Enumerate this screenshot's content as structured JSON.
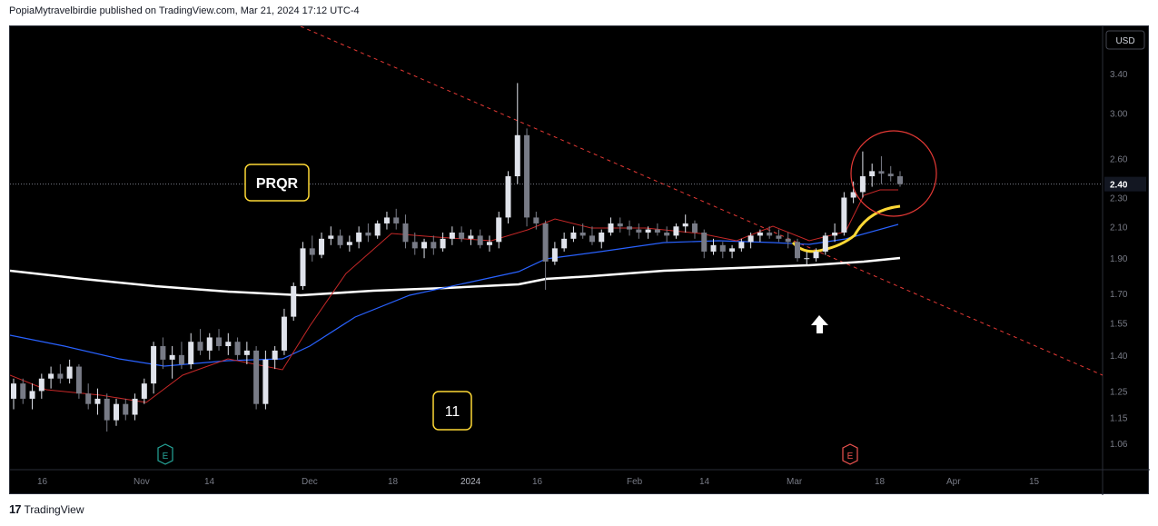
{
  "header": {
    "publish_line": "PopiaMytravelbirdie published on TradingView.com, Mar 21, 2024 17:12 UTC-4"
  },
  "footer": {
    "brand": "TradingView",
    "logo_glyph": "17"
  },
  "chart_data": {
    "type": "candlestick",
    "currency": "USD",
    "symbol_label": "PRQR",
    "count_label": "11",
    "last_price": "2.40",
    "y_ticks": [
      "3.40",
      "3.00",
      "2.60",
      "2.30",
      "2.10",
      "1.90",
      "1.70",
      "1.55",
      "1.40",
      "1.25",
      "1.15",
      "1.06"
    ],
    "y_scale": "log",
    "x_ticks": [
      "16",
      "Nov",
      "14",
      "Dec",
      "18",
      "2024",
      "16",
      "Feb",
      "14",
      "Mar",
      "18",
      "Apr",
      "15"
    ],
    "earnings_markers": [
      {
        "label": "E",
        "date": "Nov 8",
        "color": "#26a69a"
      },
      {
        "label": "E",
        "date": "Mar 14",
        "color": "#ef5350"
      }
    ],
    "annotations": {
      "arrow": "up-arrow-icon",
      "circle_color": "#e53935",
      "downtrend_line_color": "#e53935"
    },
    "ohlc_approx": [
      [
        1.22,
        1.3,
        1.18,
        1.28
      ],
      [
        1.28,
        1.3,
        1.2,
        1.22
      ],
      [
        1.22,
        1.28,
        1.18,
        1.25
      ],
      [
        1.25,
        1.32,
        1.22,
        1.3
      ],
      [
        1.3,
        1.35,
        1.26,
        1.32
      ],
      [
        1.32,
        1.36,
        1.28,
        1.3
      ],
      [
        1.3,
        1.38,
        1.28,
        1.35
      ],
      [
        1.35,
        1.36,
        1.22,
        1.24
      ],
      [
        1.24,
        1.28,
        1.18,
        1.2
      ],
      [
        1.2,
        1.26,
        1.16,
        1.22
      ],
      [
        1.22,
        1.24,
        1.1,
        1.14
      ],
      [
        1.14,
        1.22,
        1.12,
        1.2
      ],
      [
        1.2,
        1.22,
        1.14,
        1.16
      ],
      [
        1.16,
        1.24,
        1.14,
        1.22
      ],
      [
        1.22,
        1.3,
        1.2,
        1.28
      ],
      [
        1.28,
        1.46,
        1.24,
        1.44
      ],
      [
        1.44,
        1.48,
        1.34,
        1.38
      ],
      [
        1.38,
        1.44,
        1.3,
        1.4
      ],
      [
        1.4,
        1.46,
        1.34,
        1.36
      ],
      [
        1.36,
        1.5,
        1.34,
        1.46
      ],
      [
        1.46,
        1.52,
        1.4,
        1.42
      ],
      [
        1.42,
        1.5,
        1.38,
        1.48
      ],
      [
        1.48,
        1.52,
        1.42,
        1.44
      ],
      [
        1.44,
        1.5,
        1.4,
        1.46
      ],
      [
        1.46,
        1.48,
        1.38,
        1.4
      ],
      [
        1.4,
        1.46,
        1.36,
        1.42
      ],
      [
        1.42,
        1.44,
        1.18,
        1.2
      ],
      [
        1.2,
        1.42,
        1.18,
        1.38
      ],
      [
        1.38,
        1.44,
        1.34,
        1.42
      ],
      [
        1.42,
        1.62,
        1.4,
        1.58
      ],
      [
        1.58,
        1.76,
        1.56,
        1.74
      ],
      [
        1.74,
        2.0,
        1.72,
        1.96
      ],
      [
        1.96,
        2.04,
        1.88,
        1.92
      ],
      [
        1.92,
        2.06,
        1.9,
        2.02
      ],
      [
        2.02,
        2.1,
        1.98,
        2.04
      ],
      [
        2.04,
        2.08,
        1.96,
        1.98
      ],
      [
        1.98,
        2.04,
        1.94,
        2.0
      ],
      [
        2.0,
        2.1,
        1.96,
        2.06
      ],
      [
        2.06,
        2.12,
        2.0,
        2.04
      ],
      [
        2.04,
        2.14,
        2.02,
        2.12
      ],
      [
        2.12,
        2.2,
        2.08,
        2.16
      ],
      [
        2.16,
        2.22,
        2.08,
        2.12
      ],
      [
        2.12,
        2.18,
        1.96,
        2.0
      ],
      [
        2.0,
        2.06,
        1.92,
        1.96
      ],
      [
        1.96,
        2.02,
        1.9,
        2.0
      ],
      [
        2.0,
        2.04,
        1.92,
        1.96
      ],
      [
        1.96,
        2.06,
        1.94,
        2.02
      ],
      [
        2.02,
        2.1,
        1.98,
        2.06
      ],
      [
        2.06,
        2.1,
        2.0,
        2.02
      ],
      [
        2.02,
        2.08,
        1.98,
        2.04
      ],
      [
        2.04,
        2.08,
        1.96,
        1.98
      ],
      [
        1.98,
        2.04,
        1.94,
        2.0
      ],
      [
        2.0,
        2.2,
        1.96,
        2.16
      ],
      [
        2.16,
        2.5,
        2.12,
        2.46
      ],
      [
        2.46,
        3.3,
        2.4,
        2.8
      ],
      [
        2.8,
        2.86,
        2.1,
        2.16
      ],
      [
        2.16,
        2.2,
        2.08,
        2.12
      ],
      [
        2.12,
        2.14,
        1.72,
        1.88
      ],
      [
        1.88,
        2.0,
        1.86,
        1.96
      ],
      [
        1.96,
        2.06,
        1.94,
        2.02
      ],
      [
        2.02,
        2.1,
        2.0,
        2.06
      ],
      [
        2.06,
        2.12,
        2.02,
        2.04
      ],
      [
        2.04,
        2.1,
        1.98,
        2.0
      ],
      [
        2.0,
        2.08,
        1.96,
        2.06
      ],
      [
        2.06,
        2.16,
        2.04,
        2.12
      ],
      [
        2.12,
        2.16,
        2.06,
        2.1
      ],
      [
        2.1,
        2.14,
        2.04,
        2.08
      ],
      [
        2.08,
        2.12,
        2.02,
        2.06
      ],
      [
        2.06,
        2.1,
        2.02,
        2.08
      ],
      [
        2.08,
        2.12,
        2.04,
        2.06
      ],
      [
        2.06,
        2.1,
        2.0,
        2.04
      ],
      [
        2.04,
        2.12,
        2.02,
        2.1
      ],
      [
        2.1,
        2.18,
        2.06,
        2.12
      ],
      [
        2.12,
        2.14,
        2.02,
        2.06
      ],
      [
        2.06,
        2.08,
        1.9,
        1.94
      ],
      [
        1.94,
        2.02,
        1.92,
        1.98
      ],
      [
        1.98,
        2.0,
        1.9,
        1.94
      ],
      [
        1.94,
        1.98,
        1.9,
        1.96
      ],
      [
        1.96,
        2.02,
        1.94,
        2.0
      ],
      [
        2.0,
        2.06,
        1.96,
        2.04
      ],
      [
        2.04,
        2.08,
        2.0,
        2.06
      ],
      [
        2.06,
        2.1,
        2.02,
        2.04
      ],
      [
        2.04,
        2.08,
        2.0,
        2.02
      ],
      [
        2.02,
        2.06,
        1.96,
        2.0
      ],
      [
        2.0,
        2.02,
        1.88,
        1.9
      ],
      [
        1.9,
        1.94,
        1.86,
        1.9
      ],
      [
        1.9,
        1.96,
        1.88,
        1.94
      ],
      [
        1.94,
        2.06,
        1.92,
        2.04
      ],
      [
        2.04,
        2.12,
        2.0,
        2.06
      ],
      [
        2.06,
        2.34,
        2.04,
        2.3
      ],
      [
        2.3,
        2.42,
        2.26,
        2.34
      ],
      [
        2.34,
        2.66,
        2.3,
        2.46
      ],
      [
        2.46,
        2.56,
        2.38,
        2.5
      ],
      [
        2.5,
        2.62,
        2.4,
        2.48
      ],
      [
        2.48,
        2.54,
        2.42,
        2.46
      ],
      [
        2.46,
        2.5,
        2.38,
        2.4
      ]
    ]
  }
}
